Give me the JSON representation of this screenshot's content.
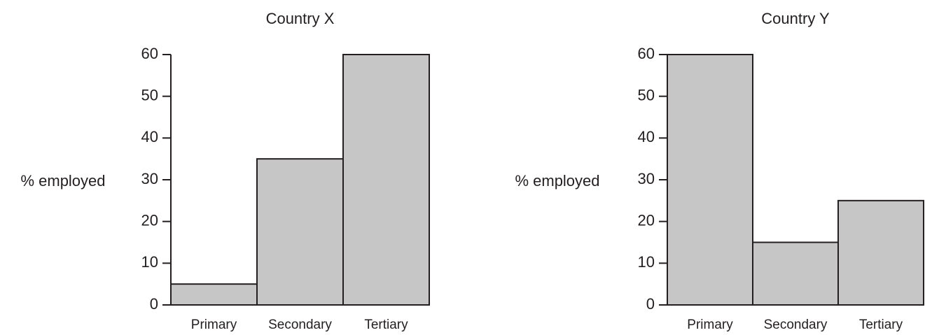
{
  "chart_data": [
    {
      "type": "bar",
      "title": "Country X",
      "y_label": "% employed",
      "categories": [
        "Primary",
        "Secondary",
        "Tertiary"
      ],
      "values": [
        5,
        35,
        60
      ],
      "color": "#c6c6c6",
      "ylim": [
        0,
        60
      ],
      "yticks": [
        0,
        10,
        20,
        30,
        40,
        50,
        60
      ]
    },
    {
      "type": "bar",
      "title": "Country Y",
      "y_label": "% employed",
      "categories": [
        "Primary",
        "Secondary",
        "Tertiary"
      ],
      "values": [
        60,
        15,
        25
      ],
      "color": "#c6c6c6",
      "ylim": [
        0,
        60
      ],
      "yticks": [
        0,
        10,
        20,
        30,
        40,
        50,
        60
      ]
    }
  ]
}
